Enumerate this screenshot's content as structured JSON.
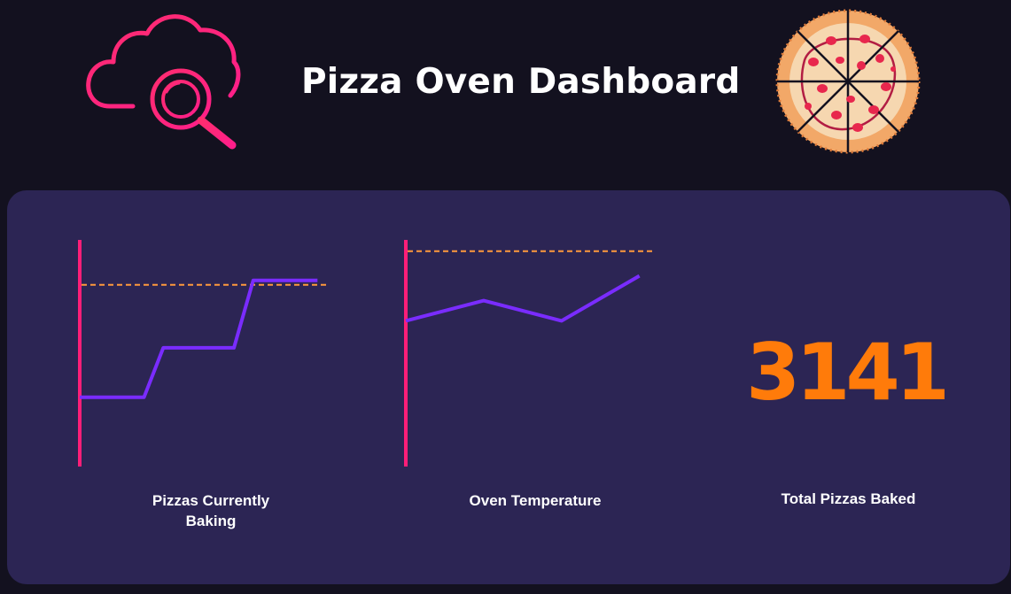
{
  "header": {
    "title": "Pizza Oven Dashboard",
    "logo_icon": "cloud-search-icon",
    "mascot_icon": "pizza-icon"
  },
  "colors": {
    "background": "#13111f",
    "panel": "#2c2554",
    "axis": "#ff1e78",
    "line": "#7a2cff",
    "threshold": "#ff9a3c",
    "metric": "#ff7b0a"
  },
  "chart_data": [
    {
      "type": "line",
      "title": "Pizzas Currently Baking",
      "xlabel": "",
      "ylabel": "",
      "x": [
        0,
        1,
        1.3,
        2.4,
        2.7,
        3.7
      ],
      "y": [
        3,
        3,
        5.2,
        5.2,
        8.2,
        8.2
      ],
      "threshold": 8,
      "xlim": [
        0,
        4
      ],
      "ylim": [
        0,
        10
      ],
      "grid": false
    },
    {
      "type": "line",
      "title": "Oven Temperature",
      "xlabel": "",
      "ylabel": "",
      "x": [
        0,
        1,
        2,
        3
      ],
      "y": [
        6.4,
        7.3,
        6.4,
        8.4
      ],
      "threshold": 9.5,
      "xlim": [
        0,
        3.3
      ],
      "ylim": [
        0,
        10
      ],
      "grid": false
    }
  ],
  "metric": {
    "value": "3141",
    "label": "Total Pizzas Baked"
  },
  "captions": {
    "chart1": "Pizzas Currently\nBaking",
    "chart2": "Oven Temperature"
  }
}
